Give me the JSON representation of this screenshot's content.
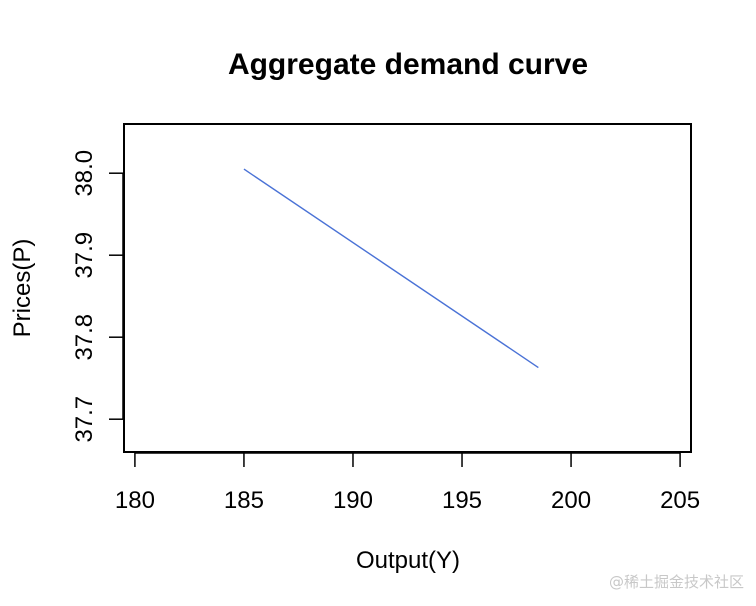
{
  "chart_data": {
    "type": "line",
    "title": "Aggregate demand curve",
    "xlabel": "Output(Y)",
    "ylabel": "Prices(P)",
    "x_ticks": [
      180,
      185,
      190,
      195,
      200,
      205
    ],
    "y_ticks": [
      37.7,
      37.8,
      37.9,
      38.0
    ],
    "y_tick_labels": [
      "37.7",
      "37.8",
      "37.9",
      "38.0"
    ],
    "xlim": [
      179.5,
      205.5
    ],
    "ylim": [
      37.66,
      38.06
    ],
    "series": [
      {
        "x": [
          185.0,
          198.5
        ],
        "y": [
          38.005,
          37.763
        ],
        "color": "#4a72d6"
      }
    ],
    "grid": false,
    "legend": "none"
  },
  "watermark": "@稀土掘金技术社区"
}
